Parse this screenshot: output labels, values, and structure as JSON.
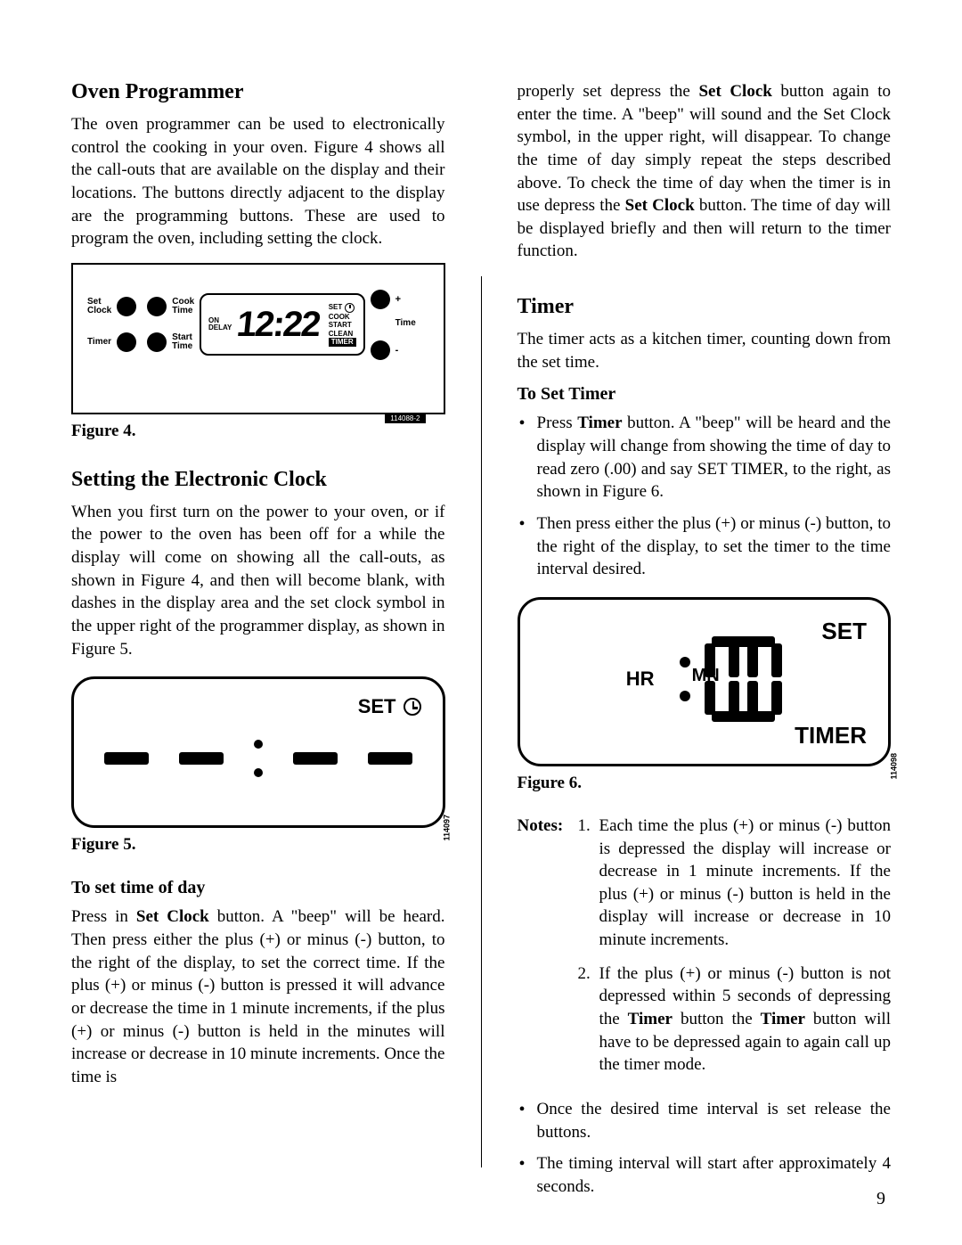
{
  "page_number": "9",
  "left": {
    "h_oven": "Oven Programmer",
    "p_oven": "The oven programmer can be used to electronically control the cooking in your oven. Figure 4 shows all the call-outs that are available on the display and their locations. The buttons directly adjacent to the display are the programming buttons. These are used to program the oven, including setting the clock.",
    "fig4": {
      "caption": "Figure 4.",
      "labels": {
        "set_clock": "Set\nClock",
        "cook_time": "Cook\nTime",
        "timer": "Timer",
        "start_time": "Start\nTime",
        "on_delay": "ON\nDELAY",
        "digits": "12:22",
        "set": "SET",
        "cook": "COOK",
        "start": "START",
        "clean": "CLEAN",
        "timer_blk": "TIMER",
        "plus": "+",
        "minus": "-",
        "time": "Time"
      },
      "tag": "114088-2"
    },
    "h_clock": "Setting the Electronic Clock",
    "p_clock": "When you first turn on the power to your oven, or if the power to the oven has been off for a while the display will come on showing all the call-outs, as shown in Figure 4, and then will become blank, with dashes in the display area and the set clock symbol in the upper right of the programmer display, as shown in Figure 5.",
    "fig5": {
      "caption": "Figure 5.",
      "set": "SET",
      "tag": "114097"
    },
    "h_setday": "To set time of day",
    "p_setday": "Press in <b>Set Clock</b> button. A \"beep\" will be heard. Then press either the plus (+) or minus (-) button, to the right of the display, to set the correct time. If the plus (+) or minus (-) button is pressed it will advance or decrease the time in 1 minute increments, if the plus (+) or minus (-) button is held in the minutes will increase or decrease in 10 minute increments. Once the time is"
  },
  "right": {
    "p_cont": "properly set depress the <b>Set Clock</b> button again to enter the time. A \"beep\" will sound and the Set Clock symbol, in the upper right, will disappear. To change the time of day simply repeat the steps described above. To check the time of day when the timer is in use depress the <b>Set Clock</b> button. The time of day will be displayed briefly and then will return to the timer function.",
    "h_timer": "Timer",
    "p_timer": "The timer acts as a kitchen timer, counting down from the set time.",
    "h_settimer": "To Set Timer",
    "li1": "Press <b>Timer</b> button. A \"beep\" will be heard and the display will change from showing the time of day to read zero (.00) and say SET TIMER, to the right, as shown in Figure 6.",
    "li2": "Then press either the plus (+) or minus (-) button, to the right of the display, to set the timer to the time interval desired.",
    "fig6": {
      "caption": "Figure 6.",
      "set": "SET",
      "hr": "HR",
      "mn": "MN",
      "timer": "TIMER",
      "tag": "114098"
    },
    "notes_label": "Notes:",
    "note1_num": "1.",
    "note1": "Each time the plus (+) or minus (-) button is depressed the display will increase or decrease in 1 minute increments. If the plus (+) or minus (-) button is held in the display will increase or decrease in 10 minute increments.",
    "note2_num": "2.",
    "note2": "If the plus (+) or minus (-) button is not depressed within 5 seconds of depressing the <b>Timer</b> button the <b>Timer</b> button will have to be depressed again to again call up the timer mode.",
    "li3": "Once the desired time interval is set release the buttons.",
    "li4": "The timing interval will start after approximately 4 seconds."
  }
}
